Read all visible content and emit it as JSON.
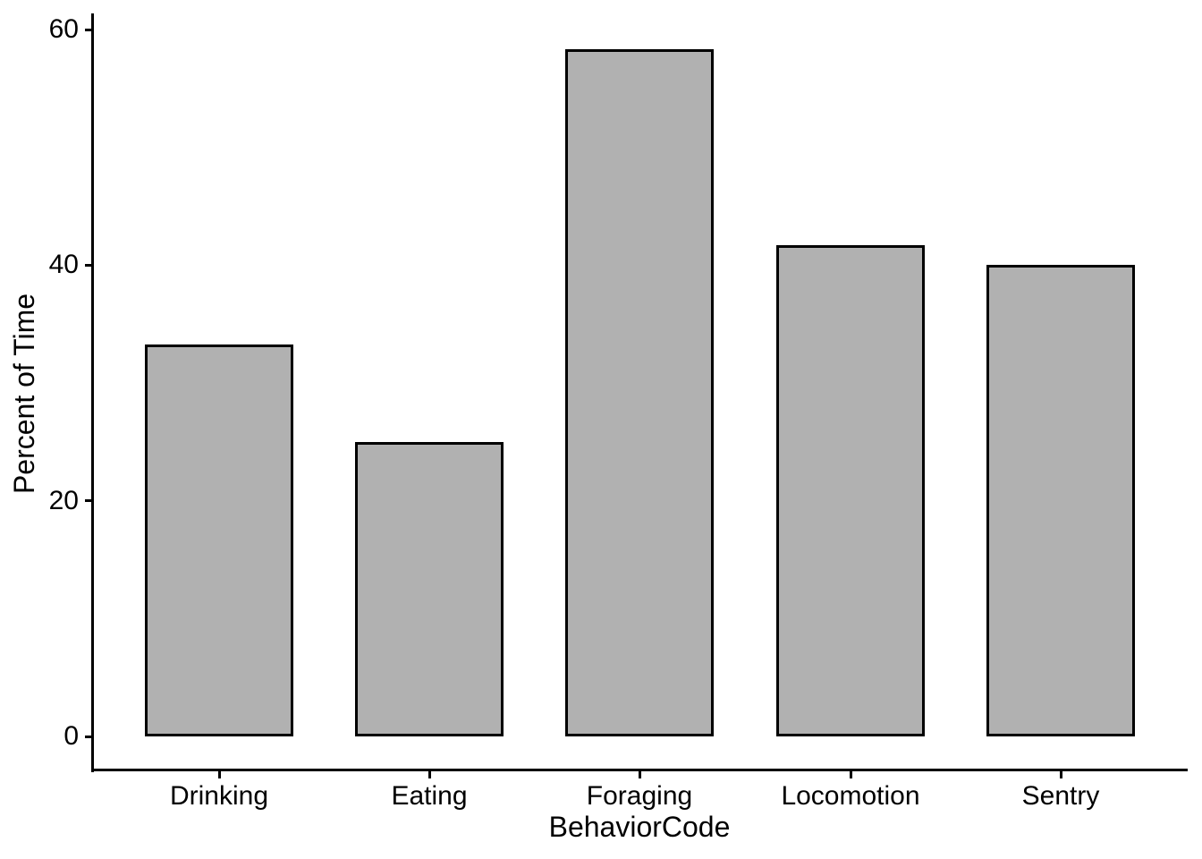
{
  "chart_data": {
    "type": "bar",
    "categories": [
      "Drinking",
      "Eating",
      "Foraging",
      "Locomotion",
      "Sentry"
    ],
    "values": [
      33.3,
      25,
      58.3,
      41.7,
      40
    ],
    "title": "",
    "xlabel": "BehaviorCode",
    "ylabel": "Percent of Time",
    "ylim": [
      0,
      60
    ],
    "yticks": [
      0,
      20,
      40,
      60
    ],
    "grid": false,
    "legend": "none",
    "bar_fill": "#b1b1b1",
    "bar_border": "#000000",
    "axis_color": "#000000",
    "text_color": "#000000",
    "background": "#ffffff"
  }
}
